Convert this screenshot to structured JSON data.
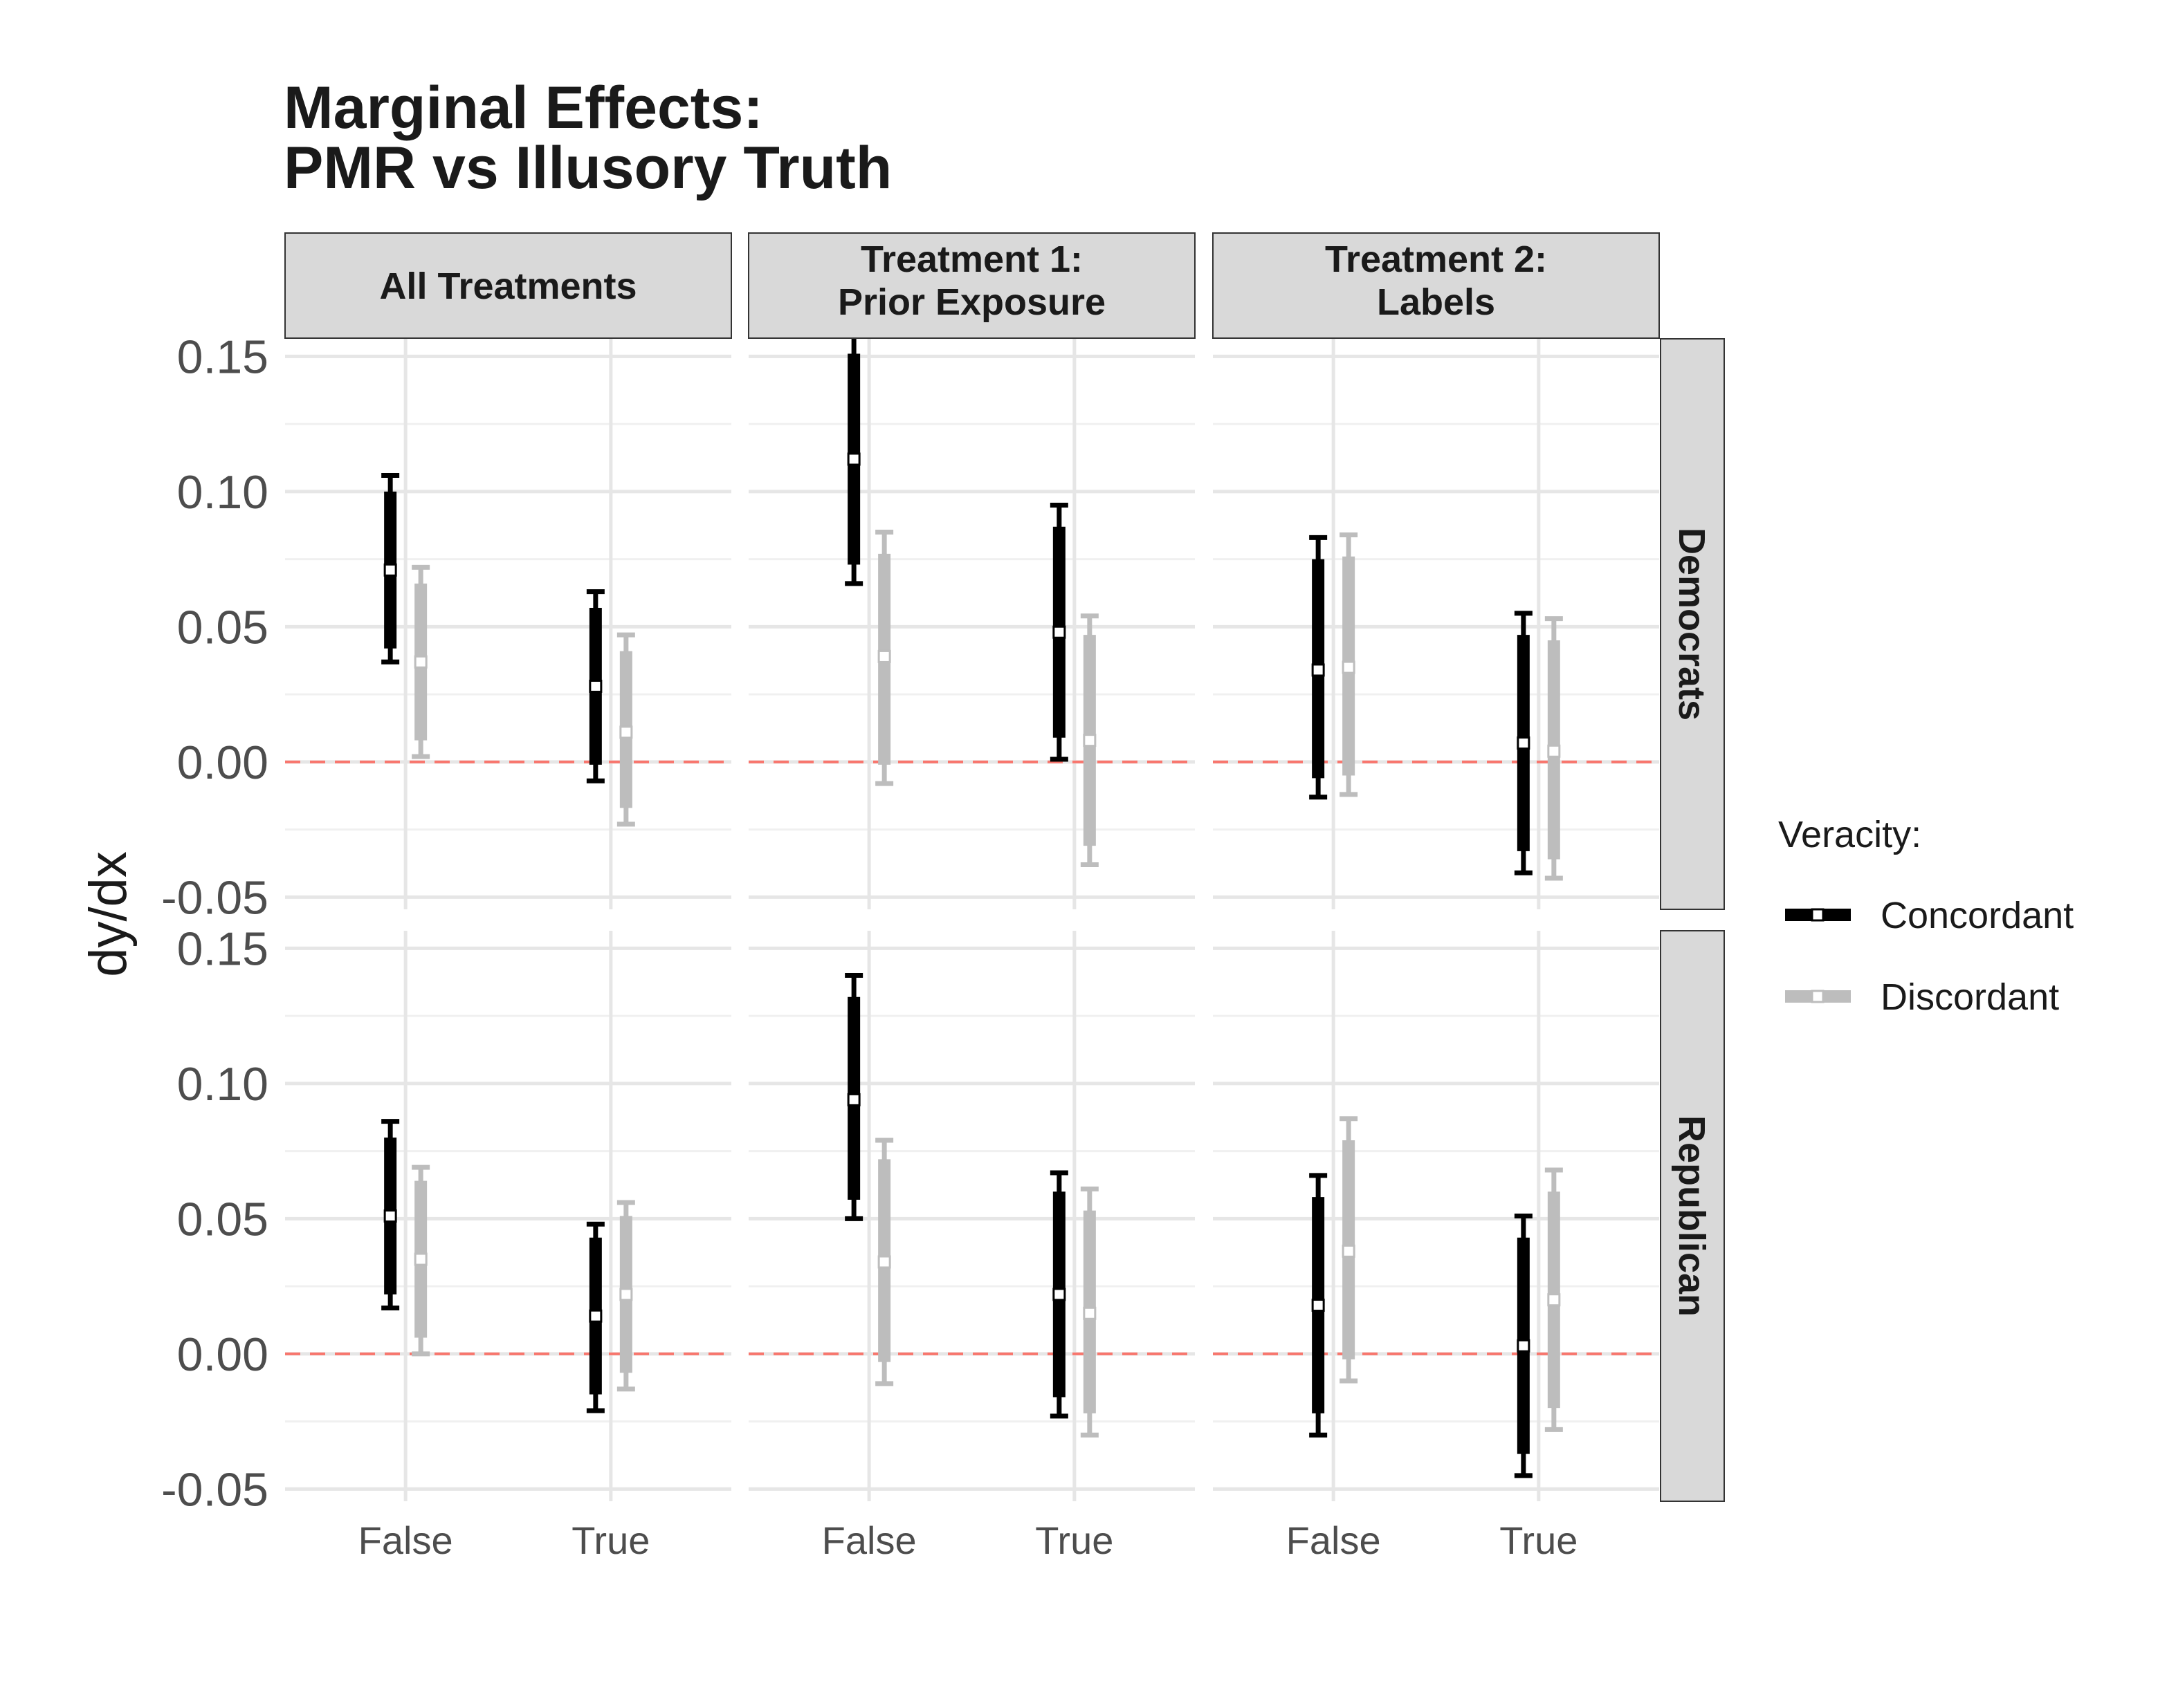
{
  "chart_data": {
    "type": "errorbar",
    "title_lines": [
      "Marginal Effects:",
      "PMR vs Illusory Truth"
    ],
    "ylabel": "dy/dx",
    "xlabel": "",
    "ylim": [
      -0.05,
      0.15
    ],
    "yticks": [
      -0.05,
      0.0,
      0.05,
      0.1,
      0.15
    ],
    "ytick_labels": [
      "-0.05",
      "0.00",
      "0.05",
      "0.10",
      "0.15"
    ],
    "x_categories": [
      "False",
      "True"
    ],
    "reference_line": {
      "y": 0,
      "color": "#f8766d",
      "style": "dashed"
    },
    "columns": [
      {
        "label_lines": [
          "All Treatments"
        ]
      },
      {
        "label_lines": [
          "Treatment 1:",
          "Prior Exposure"
        ]
      },
      {
        "label_lines": [
          "Treatment 2:",
          "Labels"
        ]
      }
    ],
    "rows": [
      {
        "label": "Democrats"
      },
      {
        "label": "Republican"
      }
    ],
    "legend": {
      "title": "Veracity:",
      "placement": "right",
      "entries": [
        {
          "label": "Concordant",
          "color": "#000000"
        },
        {
          "label": "Discordant",
          "color": "#bdbdbd"
        }
      ]
    },
    "grid": true,
    "panels": [
      {
        "row": 0,
        "col": 0,
        "points": [
          {
            "x": "False",
            "series": "Concordant",
            "est": 0.071,
            "lo95": 0.037,
            "hi95": 0.106,
            "lo90": 0.042,
            "hi90": 0.1
          },
          {
            "x": "False",
            "series": "Discordant",
            "est": 0.037,
            "lo95": 0.002,
            "hi95": 0.072,
            "lo90": 0.008,
            "hi90": 0.066
          },
          {
            "x": "True",
            "series": "Concordant",
            "est": 0.028,
            "lo95": -0.007,
            "hi95": 0.063,
            "lo90": -0.001,
            "hi90": 0.057
          },
          {
            "x": "True",
            "series": "Discordant",
            "est": 0.011,
            "lo95": -0.023,
            "hi95": 0.047,
            "lo90": -0.017,
            "hi90": 0.041
          }
        ]
      },
      {
        "row": 0,
        "col": 1,
        "points": [
          {
            "x": "False",
            "series": "Concordant",
            "est": 0.112,
            "lo95": 0.066,
            "hi95": 0.159,
            "lo90": 0.073,
            "hi90": 0.151
          },
          {
            "x": "False",
            "series": "Discordant",
            "est": 0.039,
            "lo95": -0.008,
            "hi95": 0.085,
            "lo90": -0.001,
            "hi90": 0.077
          },
          {
            "x": "True",
            "series": "Concordant",
            "est": 0.048,
            "lo95": 0.001,
            "hi95": 0.095,
            "lo90": 0.009,
            "hi90": 0.087
          },
          {
            "x": "True",
            "series": "Discordant",
            "est": 0.008,
            "lo95": -0.038,
            "hi95": 0.054,
            "lo90": -0.031,
            "hi90": 0.047
          }
        ]
      },
      {
        "row": 0,
        "col": 2,
        "points": [
          {
            "x": "False",
            "series": "Concordant",
            "est": 0.034,
            "lo95": -0.013,
            "hi95": 0.083,
            "lo90": -0.006,
            "hi90": 0.075
          },
          {
            "x": "False",
            "series": "Discordant",
            "est": 0.035,
            "lo95": -0.012,
            "hi95": 0.084,
            "lo90": -0.005,
            "hi90": 0.076
          },
          {
            "x": "True",
            "series": "Concordant",
            "est": 0.007,
            "lo95": -0.041,
            "hi95": 0.055,
            "lo90": -0.033,
            "hi90": 0.047
          },
          {
            "x": "True",
            "series": "Discordant",
            "est": 0.004,
            "lo95": -0.043,
            "hi95": 0.053,
            "lo90": -0.036,
            "hi90": 0.045
          }
        ]
      },
      {
        "row": 1,
        "col": 0,
        "points": [
          {
            "x": "False",
            "series": "Concordant",
            "est": 0.051,
            "lo95": 0.017,
            "hi95": 0.086,
            "lo90": 0.022,
            "hi90": 0.08
          },
          {
            "x": "False",
            "series": "Discordant",
            "est": 0.035,
            "lo95": 0.0,
            "hi95": 0.069,
            "lo90": 0.006,
            "hi90": 0.064
          },
          {
            "x": "True",
            "series": "Concordant",
            "est": 0.014,
            "lo95": -0.021,
            "hi95": 0.048,
            "lo90": -0.015,
            "hi90": 0.043
          },
          {
            "x": "True",
            "series": "Discordant",
            "est": 0.022,
            "lo95": -0.013,
            "hi95": 0.056,
            "lo90": -0.007,
            "hi90": 0.051
          }
        ]
      },
      {
        "row": 1,
        "col": 1,
        "points": [
          {
            "x": "False",
            "series": "Concordant",
            "est": 0.094,
            "lo95": 0.05,
            "hi95": 0.14,
            "lo90": 0.057,
            "hi90": 0.132
          },
          {
            "x": "False",
            "series": "Discordant",
            "est": 0.034,
            "lo95": -0.011,
            "hi95": 0.079,
            "lo90": -0.003,
            "hi90": 0.072
          },
          {
            "x": "True",
            "series": "Concordant",
            "est": 0.022,
            "lo95": -0.023,
            "hi95": 0.067,
            "lo90": -0.016,
            "hi90": 0.06
          },
          {
            "x": "True",
            "series": "Discordant",
            "est": 0.015,
            "lo95": -0.03,
            "hi95": 0.061,
            "lo90": -0.022,
            "hi90": 0.053
          }
        ]
      },
      {
        "row": 1,
        "col": 2,
        "points": [
          {
            "x": "False",
            "series": "Concordant",
            "est": 0.018,
            "lo95": -0.03,
            "hi95": 0.066,
            "lo90": -0.022,
            "hi90": 0.058
          },
          {
            "x": "False",
            "series": "Discordant",
            "est": 0.038,
            "lo95": -0.01,
            "hi95": 0.087,
            "lo90": -0.002,
            "hi90": 0.079
          },
          {
            "x": "True",
            "series": "Concordant",
            "est": 0.003,
            "lo95": -0.045,
            "hi95": 0.051,
            "lo90": -0.037,
            "hi90": 0.043
          },
          {
            "x": "True",
            "series": "Discordant",
            "est": 0.02,
            "lo95": -0.028,
            "hi95": 0.068,
            "lo90": -0.02,
            "hi90": 0.06
          }
        ]
      }
    ]
  }
}
